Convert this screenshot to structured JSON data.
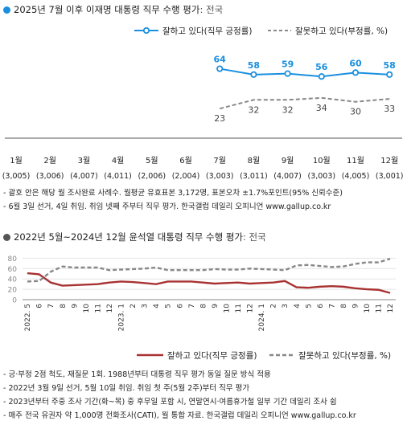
{
  "section1": {
    "title": "2025년 7월 이후 이재명 대통령 직무 수행 평가",
    "subtitle": ": 전국",
    "dot_color": "#1a8fe0",
    "notes": [
      "- 괄호 안은 해당 월 조사완료 사례수. 월평균 유효표본 3,172명, 표본오차 ±1.7%포인트(95% 신뢰수준)",
      "- 6월 3일 선거, 4일 취임. 취임 넷째 주부터 직무 평가. 한국갤럽 데일리 오피니언 www.gallup.co.kr"
    ]
  },
  "section2": {
    "title": "2022년 5월~2024년 12월 윤석열 대통령 직무 수행 평가",
    "subtitle": ": 전국",
    "dot_color": "#555555",
    "notes": [
      "- 긍·부정 2점 척도, 재질문 1회. 1988년부터 대통령 직무 평가 동일 질문 방식 적용",
      "- 2022년 3월 9일 선거, 5월 10일 취임. 취임 첫 주(5월 2주)부터 직무 평가",
      "- 2023년부터 주중 조사 기간(화~목) 중 후무일 포함 시, 연말연시·여름휴가철 일부 기간 데일리 조사 쉼",
      "- 매주 전국 유권자 약 1,000명 전화조사(CATI), 월 통합 자료. 한국갤럽 데일리 오피니언 www.gallup.co.kr"
    ]
  },
  "chart_data": [
    {
      "type": "line",
      "categories": [
        "1월",
        "2월",
        "3월",
        "4월",
        "5월",
        "6월",
        "7월",
        "8월",
        "9월",
        "10월",
        "11월",
        "12월"
      ],
      "sample_sizes": [
        "(3,005)",
        "(3,006)",
        "(4,007)",
        "(4,011)",
        "(2,006)",
        "(2,004)",
        "(3,003)",
        "(3,011)",
        "(4,007)",
        "(3,003)",
        "(4,005)",
        "(3,001)"
      ],
      "series": [
        {
          "name": "잘하고 있다(직무 긍정률)",
          "color": "#1a8fe0",
          "values": [
            null,
            null,
            null,
            null,
            null,
            null,
            64,
            58,
            59,
            56,
            60,
            58
          ]
        },
        {
          "name": "잘못하고 있다(부정률, %)",
          "color": "#888888",
          "values": [
            null,
            null,
            null,
            null,
            null,
            null,
            23,
            32,
            32,
            34,
            30,
            33
          ]
        }
      ],
      "ylim": [
        0,
        80
      ]
    },
    {
      "type": "line",
      "x_ticks": [
        "2022. 5",
        "6",
        "7",
        "8",
        "9",
        "10",
        "11",
        "12",
        "2023. 1",
        "2",
        "3",
        "4",
        "5",
        "6",
        "7",
        "8",
        "9",
        "10",
        "11",
        "12",
        "2024. 1",
        "2",
        "3",
        "4",
        "5",
        "6",
        "7",
        "8",
        "9",
        "10",
        "11",
        "12"
      ],
      "y_ticks": [
        0,
        20,
        40,
        60,
        80
      ],
      "ylim": [
        0,
        80
      ],
      "series": [
        {
          "name": "잘하고 있다(직무 긍정률)",
          "color": "#a83232",
          "values": [
            51,
            49,
            33,
            27,
            28,
            29,
            30,
            33,
            35,
            34,
            32,
            30,
            35,
            35,
            35,
            33,
            31,
            32,
            33,
            31,
            32,
            33,
            36,
            24,
            23,
            25,
            26,
            25,
            22,
            20,
            19,
            13
          ]
        },
        {
          "name": "잘못하고 있다(부정률, %)",
          "color": "#888888",
          "values": [
            35,
            36,
            54,
            64,
            62,
            62,
            62,
            57,
            58,
            59,
            60,
            62,
            57,
            57,
            57,
            57,
            59,
            58,
            58,
            60,
            59,
            58,
            57,
            66,
            67,
            65,
            63,
            64,
            69,
            72,
            72,
            79
          ]
        }
      ]
    }
  ]
}
